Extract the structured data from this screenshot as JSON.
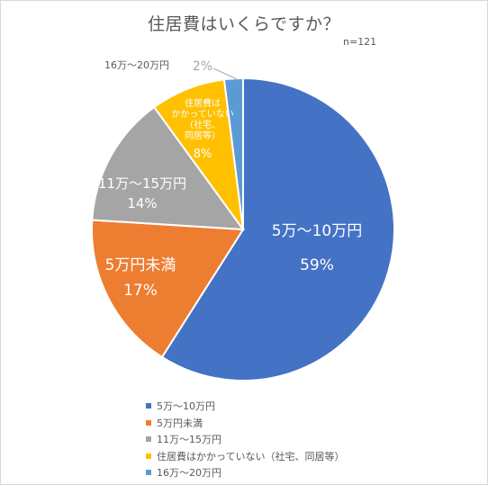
{
  "chart_data": {
    "type": "pie",
    "title": "住居費はいくらですか？",
    "note": "n=121",
    "slices": [
      {
        "name": "5万〜10万円",
        "label_lines": [
          "5万〜10万円"
        ],
        "percent_label": "59%",
        "value": 59,
        "color": "#4472c4",
        "label_color": "#ffffff",
        "label_size": 17
      },
      {
        "name": "5万円未満",
        "label_lines": [
          "5万円未満"
        ],
        "percent_label": "17%",
        "value": 17,
        "color": "#ed7d31",
        "label_color": "#ffffff",
        "label_size": 17
      },
      {
        "name": "11万〜15万円",
        "label_lines": [
          "11万〜15万円"
        ],
        "percent_label": "14%",
        "value": 14,
        "color": "#a5a5a5",
        "label_color": "#ffffff",
        "label_size": 15
      },
      {
        "name": "住居費はかかっていない（社宅、同居等）",
        "label_lines": [
          "住居費は",
          "かかっていない",
          "（社宅、",
          "同居等）"
        ],
        "percent_label": "8%",
        "value": 8,
        "color": "#ffc000",
        "label_color": "#ffffff",
        "label_size": 10
      },
      {
        "name": "16万〜20万円",
        "label_lines": [
          "16万〜20万円"
        ],
        "percent_label": "2%",
        "value": 2,
        "color": "#5b9bd5",
        "label_color": "#595959",
        "label_size": 11
      }
    ],
    "legend_position": "bottom"
  }
}
